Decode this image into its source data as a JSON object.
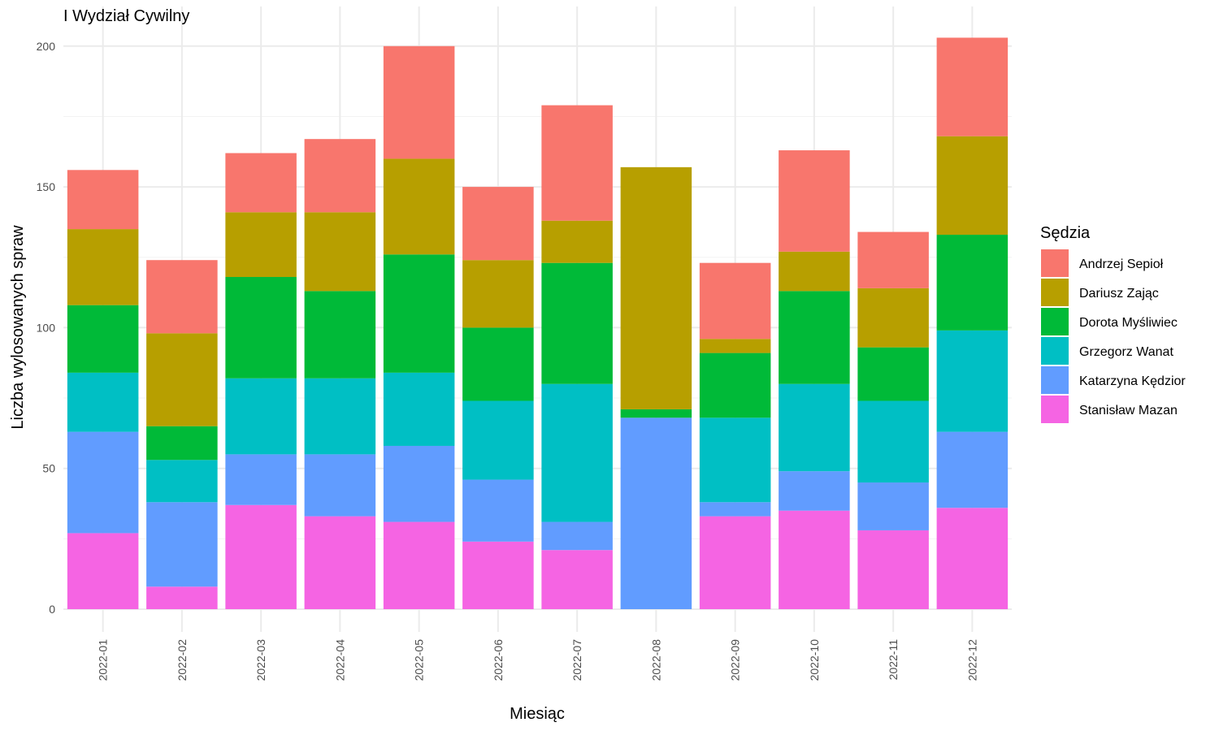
{
  "chart_data": {
    "type": "bar",
    "stacked": true,
    "title": "I Wydział Cywilny",
    "xlabel": "Miesiąc",
    "ylabel": "Liczba wylosowanych spraw",
    "ylim": [
      0,
      210
    ],
    "yticks": [
      0,
      50,
      100,
      150,
      200
    ],
    "grid": true,
    "legend_position": "right",
    "legend_title": "Sędzia",
    "categories": [
      "2022-01",
      "2022-02",
      "2022-03",
      "2022-04",
      "2022-05",
      "2022-06",
      "2022-07",
      "2022-08",
      "2022-09",
      "2022-10",
      "2022-11",
      "2022-12"
    ],
    "series": [
      {
        "name": "Andrzej Sepioł",
        "color": "#F8766D",
        "values": [
          21,
          26,
          21,
          26,
          40,
          26,
          41,
          0,
          27,
          36,
          20,
          35
        ]
      },
      {
        "name": "Dariusz Zając",
        "color": "#B79F00",
        "values": [
          27,
          33,
          23,
          28,
          34,
          24,
          15,
          86,
          5,
          14,
          21,
          35
        ]
      },
      {
        "name": "Dorota Myśliwiec",
        "color": "#00BA38",
        "values": [
          24,
          12,
          36,
          31,
          42,
          26,
          43,
          3,
          23,
          33,
          19,
          34
        ]
      },
      {
        "name": "Grzegorz Wanat",
        "color": "#00BFC4",
        "values": [
          21,
          15,
          27,
          27,
          26,
          28,
          49,
          0,
          30,
          31,
          29,
          36
        ]
      },
      {
        "name": "Katarzyna Kędzior",
        "color": "#619CFF",
        "values": [
          36,
          30,
          18,
          22,
          27,
          22,
          10,
          68,
          5,
          14,
          17,
          27
        ]
      },
      {
        "name": "Stanisław Mazan",
        "color": "#F564E3",
        "values": [
          27,
          8,
          37,
          33,
          31,
          24,
          21,
          0,
          33,
          35,
          28,
          36
        ]
      }
    ]
  }
}
